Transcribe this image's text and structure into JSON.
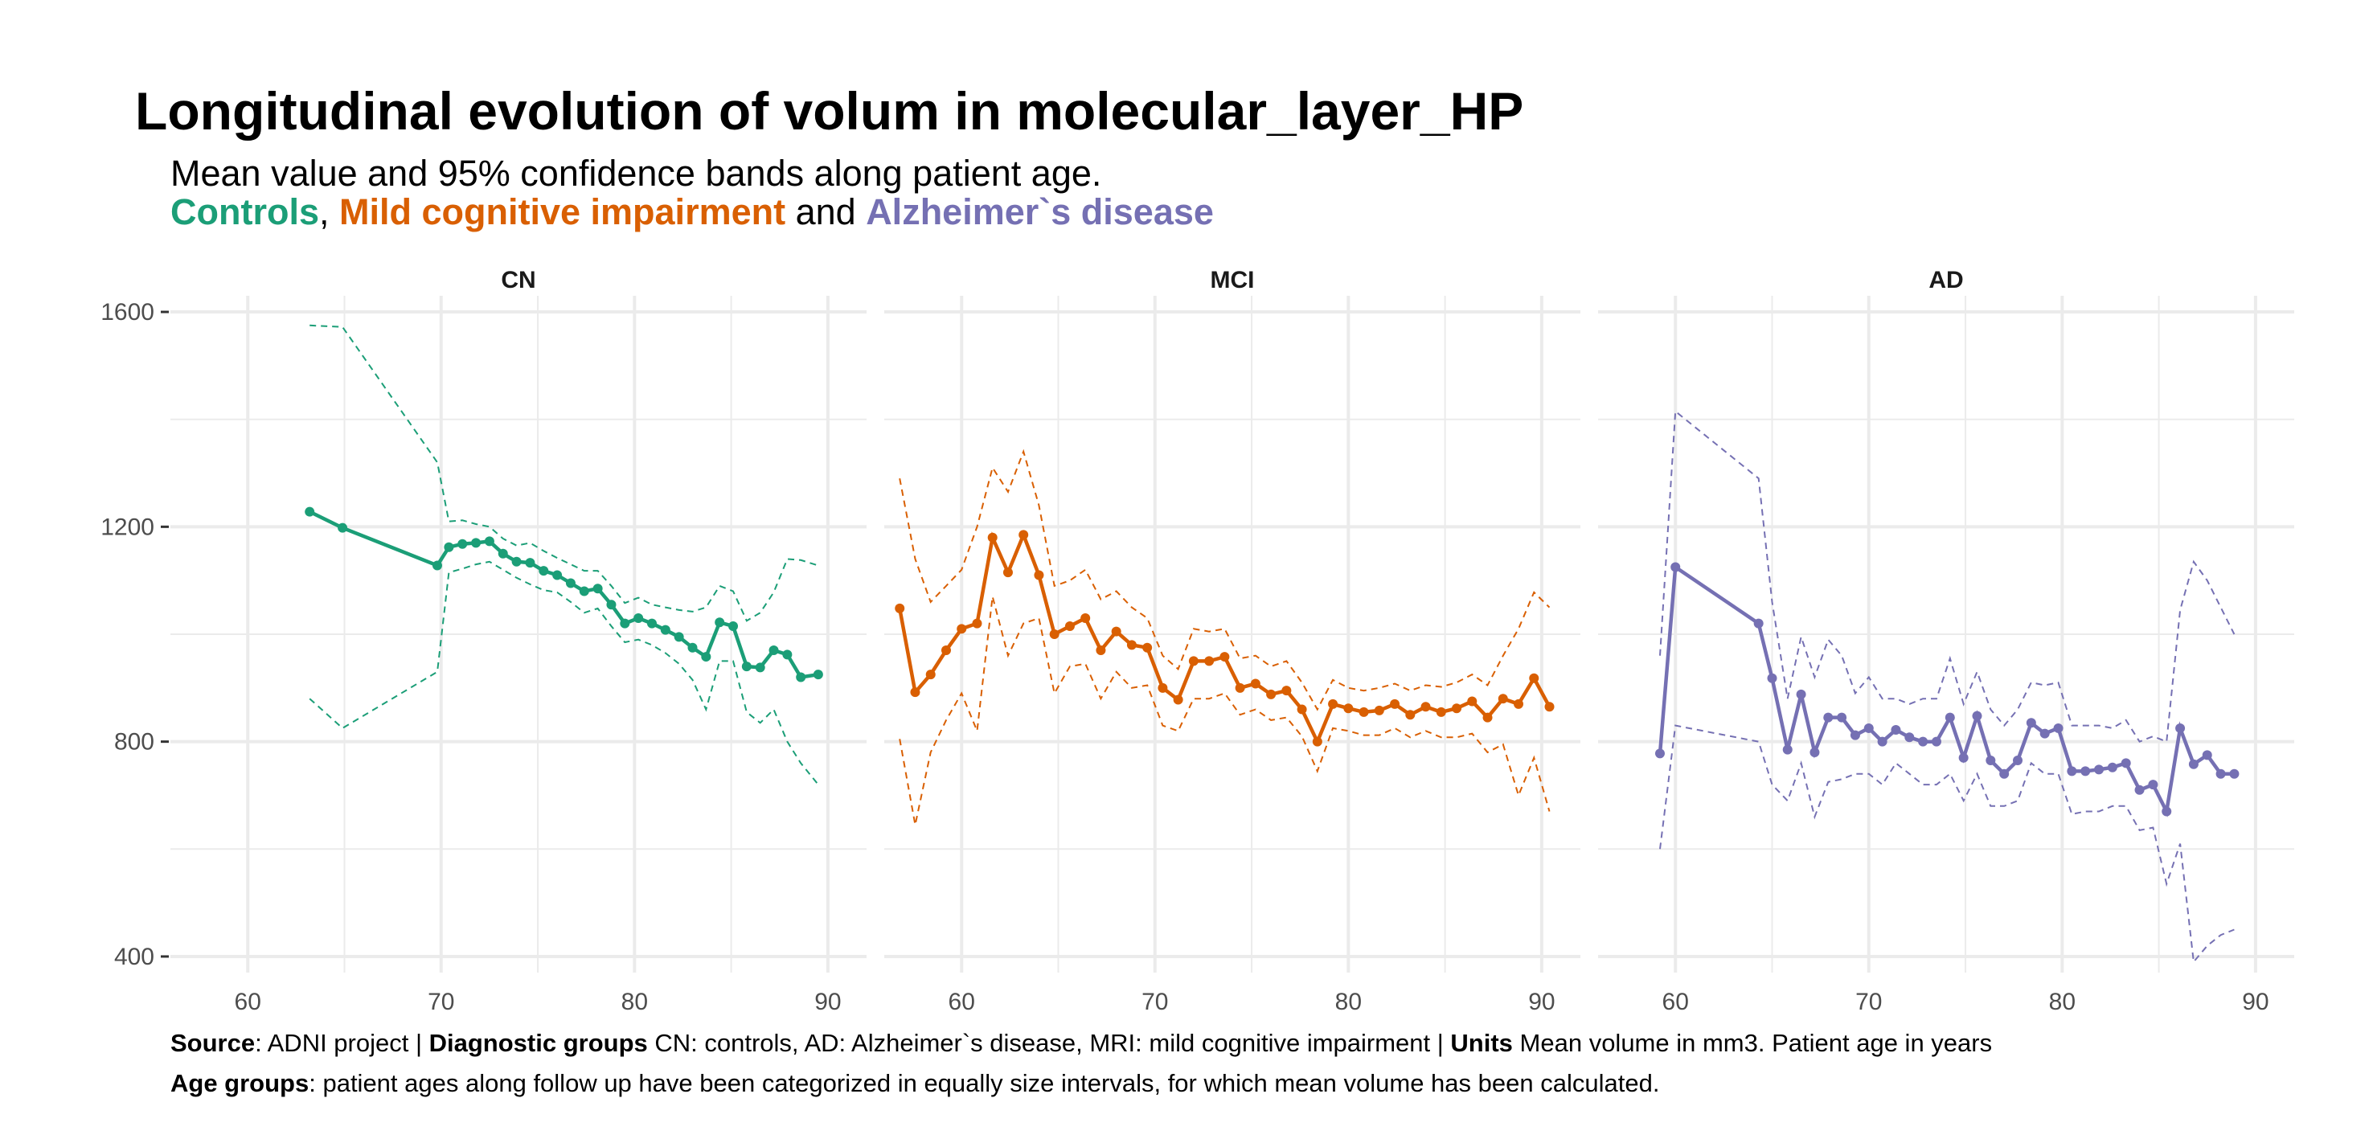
{
  "title": "Longitudinal evolution of volum in molecular_layer_HP",
  "subtitle": {
    "line1": "Mean value and 95% confidence bands along patient age.",
    "controls": "Controls",
    "sep1": ", ",
    "mci": "Mild cognitive impairment",
    "sep2": " and ",
    "ad": "Alzheimer`s disease"
  },
  "caption": {
    "source_label": "Source",
    "source_text": ": ADNI project | ",
    "groups_label": "Diagnostic groups",
    "groups_text": " CN: controls, AD: Alzheimer`s disease, MRI: mild cognitive impairment | ",
    "units_label": "Units",
    "units_text": " Mean volume in mm3. Patient age in years",
    "age_label": "Age groups",
    "age_text": ": patient ages along follow up have been categorized in equally size intervals, for which mean volume has been calculated."
  },
  "colors": {
    "CN": "#1b9e77",
    "MCI": "#d95f02",
    "AD": "#7570b3",
    "grid": "#ebebeb",
    "axis_text": "#4d4d4d"
  },
  "chart_data": [
    {
      "type": "line",
      "panel": "CN",
      "xlim": [
        56,
        92
      ],
      "ylim": [
        370,
        1630
      ],
      "x_ticks": [
        60,
        70,
        80,
        90
      ],
      "y_ticks": [
        400,
        800,
        1200,
        1600
      ],
      "grid": true,
      "x": [
        63.2,
        64.9,
        69.8,
        70.4,
        71.1,
        71.8,
        72.5,
        73.2,
        73.9,
        74.6,
        75.3,
        76.0,
        76.7,
        77.4,
        78.1,
        78.8,
        79.5,
        80.2,
        80.9,
        81.6,
        82.3,
        83.0,
        83.7,
        84.4,
        85.1,
        85.8,
        86.5,
        87.2,
        87.9,
        88.6,
        89.5
      ],
      "mean": [
        1228,
        1198,
        1128,
        1162,
        1168,
        1170,
        1173,
        1150,
        1135,
        1133,
        1118,
        1110,
        1095,
        1080,
        1085,
        1055,
        1020,
        1030,
        1020,
        1008,
        995,
        975,
        958,
        1022,
        1015,
        940,
        938,
        970,
        962,
        920,
        925
      ],
      "upper": [
        1575,
        1572,
        1320,
        1210,
        1212,
        1205,
        1200,
        1178,
        1165,
        1170,
        1155,
        1142,
        1130,
        1118,
        1118,
        1090,
        1058,
        1068,
        1055,
        1050,
        1045,
        1042,
        1050,
        1090,
        1080,
        1025,
        1040,
        1078,
        1140,
        1138,
        1128
      ],
      "lower": [
        880,
        825,
        930,
        1115,
        1122,
        1130,
        1135,
        1120,
        1105,
        1093,
        1082,
        1078,
        1060,
        1040,
        1048,
        1015,
        985,
        990,
        980,
        965,
        945,
        915,
        860,
        950,
        950,
        855,
        835,
        860,
        800,
        760,
        720
      ]
    },
    {
      "type": "line",
      "panel": "MCI",
      "xlim": [
        56,
        92
      ],
      "ylim": [
        370,
        1630
      ],
      "x_ticks": [
        60,
        70,
        80,
        90
      ],
      "y_ticks": [
        400,
        800,
        1200,
        1600
      ],
      "grid": true,
      "x": [
        56.8,
        57.6,
        58.4,
        59.2,
        60.0,
        60.8,
        61.6,
        62.4,
        63.2,
        64.0,
        64.8,
        65.6,
        66.4,
        67.2,
        68.0,
        68.8,
        69.6,
        70.4,
        71.2,
        72.0,
        72.8,
        73.6,
        74.4,
        75.2,
        76.0,
        76.8,
        77.6,
        78.4,
        79.2,
        80.0,
        80.8,
        81.6,
        82.4,
        83.2,
        84.0,
        84.8,
        85.6,
        86.4,
        87.2,
        88.0,
        88.8,
        89.6,
        90.4
      ],
      "mean": [
        1048,
        892,
        925,
        970,
        1010,
        1020,
        1180,
        1115,
        1185,
        1110,
        1000,
        1015,
        1030,
        970,
        1005,
        980,
        975,
        900,
        878,
        950,
        950,
        958,
        900,
        908,
        888,
        895,
        860,
        800,
        870,
        862,
        855,
        858,
        870,
        850,
        865,
        855,
        862,
        875,
        845,
        880,
        870,
        918,
        865
      ],
      "upper": [
        1290,
        1140,
        1060,
        1090,
        1120,
        1200,
        1310,
        1265,
        1340,
        1240,
        1090,
        1100,
        1120,
        1065,
        1080,
        1050,
        1030,
        960,
        935,
        1010,
        1005,
        1010,
        955,
        960,
        940,
        950,
        910,
        860,
        915,
        900,
        895,
        900,
        908,
        895,
        905,
        902,
        910,
        925,
        905,
        960,
        1010,
        1078,
        1050
      ],
      "lower": [
        805,
        645,
        780,
        840,
        890,
        820,
        1070,
        960,
        1020,
        1030,
        890,
        940,
        945,
        880,
        930,
        900,
        905,
        830,
        820,
        880,
        880,
        890,
        850,
        860,
        840,
        845,
        810,
        745,
        825,
        820,
        812,
        812,
        825,
        808,
        820,
        808,
        808,
        815,
        780,
        795,
        700,
        770,
        670
      ]
    },
    {
      "type": "line",
      "panel": "AD",
      "xlim": [
        56,
        92
      ],
      "ylim": [
        370,
        1630
      ],
      "x_ticks": [
        60,
        70,
        80,
        90
      ],
      "y_ticks": [
        400,
        800,
        1200,
        1600
      ],
      "grid": true,
      "x": [
        59.2,
        60.0,
        64.3,
        65.0,
        65.8,
        66.5,
        67.2,
        67.9,
        68.6,
        69.3,
        70.0,
        70.7,
        71.4,
        72.1,
        72.8,
        73.5,
        74.2,
        74.9,
        75.6,
        76.3,
        77.0,
        77.7,
        78.4,
        79.1,
        79.8,
        80.5,
        81.2,
        81.9,
        82.6,
        83.3,
        84.0,
        84.7,
        85.4,
        86.1,
        86.8,
        87.5,
        88.2,
        88.9
      ],
      "mean": [
        778,
        1125,
        1020,
        918,
        785,
        888,
        780,
        845,
        845,
        812,
        825,
        800,
        822,
        808,
        800,
        800,
        845,
        770,
        848,
        765,
        740,
        765,
        835,
        815,
        825,
        745,
        745,
        748,
        752,
        760,
        710,
        720,
        670,
        825,
        758,
        775,
        740,
        740
      ],
      "upper": [
        960,
        1415,
        1290,
        1060,
        880,
        995,
        920,
        990,
        960,
        890,
        920,
        880,
        880,
        870,
        880,
        880,
        955,
        870,
        930,
        860,
        830,
        860,
        910,
        905,
        910,
        830,
        830,
        830,
        825,
        840,
        800,
        810,
        800,
        1045,
        1135,
        1100,
        1050,
        1000
      ],
      "lower": [
        600,
        830,
        800,
        720,
        690,
        760,
        660,
        725,
        730,
        740,
        740,
        720,
        760,
        740,
        720,
        720,
        740,
        690,
        740,
        680,
        680,
        690,
        760,
        740,
        740,
        665,
        670,
        670,
        680,
        680,
        635,
        640,
        535,
        610,
        390,
        420,
        440,
        450
      ]
    }
  ]
}
